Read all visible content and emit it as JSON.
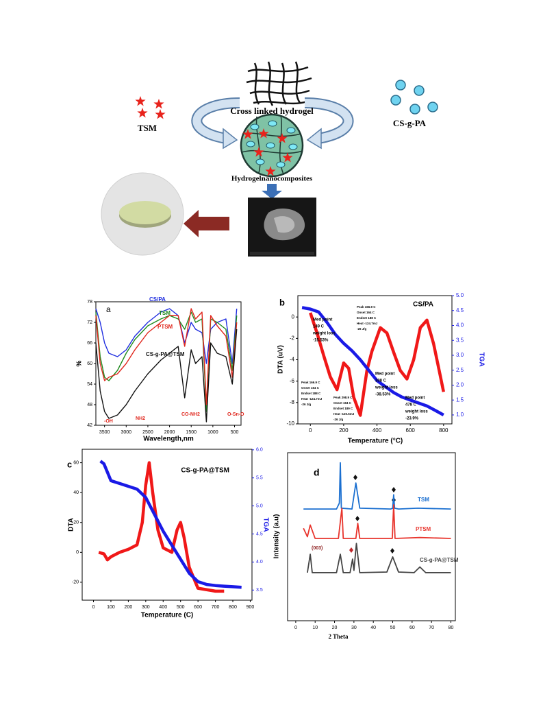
{
  "scheme": {
    "hydrogel_label": "Cross linked hydrogel",
    "drug_label": "TSM",
    "polymer_label": "CS-g-PA",
    "composite_label": "Hydrogelnanocomposites"
  },
  "chart_data": [
    {
      "type": "line",
      "panel": "a",
      "xlabel": "Wavelength,nm",
      "ylabel": "%",
      "xlim": [
        3700,
        350
      ],
      "xticks": [
        3500,
        3000,
        2500,
        2000,
        1500,
        1000,
        500
      ],
      "ylim": [
        42,
        78
      ],
      "yticks": [
        42,
        48,
        54,
        60,
        66,
        72,
        78
      ],
      "x": [
        3700,
        3600,
        3500,
        3400,
        3200,
        3000,
        2800,
        2500,
        2200,
        2000,
        1800,
        1650,
        1500,
        1400,
        1250,
        1150,
        1050,
        900,
        700,
        550,
        450
      ],
      "series": [
        {
          "name": "CS/PA",
          "color": "#1f2de0",
          "values": [
            76,
            72,
            66,
            63,
            62,
            64,
            68,
            72,
            75,
            76,
            74,
            66,
            72,
            70,
            69,
            60,
            70,
            72,
            73,
            60,
            76
          ]
        },
        {
          "name": "TSM",
          "color": "#1e8a1e",
          "values": [
            75,
            62,
            56,
            55,
            58,
            63,
            67,
            71,
            73,
            74,
            73,
            70,
            75,
            72,
            73,
            46,
            73,
            72,
            70,
            58,
            74
          ]
        },
        {
          "name": "PTSM",
          "color": "#e0261c",
          "values": [
            74,
            60,
            55,
            56,
            57,
            60,
            64,
            69,
            72,
            74,
            74,
            65,
            76,
            73,
            75,
            48,
            74,
            71,
            68,
            56,
            72
          ]
        },
        {
          "name": "CS-g-PA@TSM",
          "color": "#111111",
          "values": [
            66,
            52,
            46,
            44,
            45,
            48,
            52,
            57,
            61,
            63,
            65,
            50,
            64,
            60,
            62,
            43,
            66,
            63,
            62,
            54,
            70
          ]
        }
      ],
      "annotations": [
        "-OH",
        "NH2",
        "CO-NH2",
        "O-Sn-O"
      ]
    },
    {
      "type": "line",
      "panel": "b",
      "title": "CS/PA",
      "xlabel": "Temperature (°C)",
      "ylabel": "DTA (uV)",
      "y2label": "TGA",
      "xlim": [
        -75,
        850
      ],
      "xticks": [
        0,
        200,
        400,
        600,
        800
      ],
      "ylim": [
        -10,
        2
      ],
      "yticks": [
        -10,
        -8,
        -6,
        -4,
        -2,
        0
      ],
      "y2lim": [
        0.7,
        5
      ],
      "y2ticks": [
        {
          "value": 1,
          "label": "1.0"
        },
        1.5,
        {
          "value": 2,
          "label": "2.0"
        },
        2.5,
        {
          "value": 3,
          "label": "3.0"
        },
        3.5,
        {
          "value": 4,
          "label": "4.0"
        },
        4.5,
        {
          "value": 5,
          "label": "5.0"
        }
      ],
      "series": [
        {
          "name": "DTA",
          "color": "#f01818",
          "x": [
            0,
            40,
            80,
            120,
            160,
            200,
            230,
            260,
            300,
            340,
            370,
            420,
            460,
            500,
            540,
            580,
            620,
            660,
            700,
            740,
            780,
            800
          ],
          "values": [
            0.4,
            -1.5,
            -3.6,
            -5.6,
            -6.8,
            -4.3,
            -4.8,
            -7.5,
            -9.2,
            -5,
            -3.2,
            -1,
            -1.5,
            -3.3,
            -5,
            -5.8,
            -4,
            -1,
            -0.3,
            -2.5,
            -5.5,
            -7
          ]
        },
        {
          "name": "TGA",
          "color": "#1a1ae6",
          "axis": "y2",
          "x": [
            -50,
            0,
            50,
            100,
            150,
            200,
            250,
            300,
            350,
            400,
            450,
            500,
            550,
            600,
            650,
            700,
            750,
            800
          ],
          "values": [
            4.6,
            4.55,
            4.45,
            4.1,
            3.7,
            3.4,
            3.15,
            2.85,
            2.5,
            2.15,
            1.95,
            1.75,
            1.6,
            1.5,
            1.4,
            1.3,
            1.15,
            1.0
          ]
        }
      ],
      "annotations": [
        [
          "Med point",
          "149 C",
          "weight loss",
          "-15.53%"
        ],
        [
          "Peak 166.9 C",
          "Onset 164  C",
          "Endset 188 C",
          "Heat  -124.7mJ",
          "-26 J/g"
        ],
        [
          "Med point",
          "308 C",
          "weight loss",
          "-38.53%"
        ],
        [
          "Peak 166.9 C",
          "Onset 164  C",
          "Endset 188 C",
          "Heat  -124.7mJ",
          "-26 J/g"
        ],
        [
          "Peak 298.9 C",
          "Onset 194  C",
          "Endset 189 C",
          "Heat  -120.5mJ",
          "-26 J/g"
        ],
        [
          "Med point",
          "478 C",
          "weight loss",
          "-23.9%"
        ]
      ]
    },
    {
      "type": "line",
      "panel": "c",
      "title": "CS-g-PA@TSM",
      "xlabel": "Temperature (C)",
      "ylabel": "DTA",
      "y2label": "TGA",
      "xlim": [
        -65,
        910
      ],
      "xticks": [
        0,
        100,
        200,
        300,
        400,
        500,
        600,
        700,
        800,
        900
      ],
      "ylim": [
        -32,
        69
      ],
      "yticks": [
        -20,
        0,
        20,
        40,
        60
      ],
      "y2lim": [
        3.32,
        6.01
      ],
      "y2ticks": [
        3.5,
        {
          "value": 4,
          "label": "4.0"
        },
        4.5,
        {
          "value": 5,
          "label": "5.0"
        },
        5.5,
        {
          "value": 6,
          "label": "6.0"
        }
      ],
      "series": [
        {
          "name": "DTA",
          "color": "#f01818",
          "x": [
            30,
            60,
            80,
            100,
            150,
            200,
            250,
            280,
            300,
            320,
            340,
            370,
            400,
            450,
            480,
            500,
            520,
            550,
            600,
            700,
            750
          ],
          "values": [
            0,
            -1,
            -5,
            -3,
            0,
            2,
            5,
            20,
            45,
            60,
            40,
            15,
            3,
            0,
            15,
            20,
            10,
            -10,
            -24,
            -26,
            -26
          ]
        },
        {
          "name": "TGA",
          "color": "#1a1ae6",
          "axis": "y2",
          "x": [
            40,
            60,
            80,
            100,
            150,
            200,
            250,
            300,
            350,
            400,
            450,
            500,
            550,
            600,
            650,
            700,
            750,
            800,
            850
          ],
          "values": [
            5.8,
            5.75,
            5.6,
            5.45,
            5.4,
            5.35,
            5.3,
            5.15,
            4.85,
            4.55,
            4.3,
            4.05,
            3.8,
            3.65,
            3.6,
            3.58,
            3.57,
            3.56,
            3.55
          ]
        }
      ]
    },
    {
      "type": "line",
      "panel": "d",
      "xlabel": "2 Theta",
      "ylabel": "Intensity (a.u)",
      "xlim": [
        -4.2,
        82.3
      ],
      "xticks": [
        0,
        10,
        20,
        30,
        40,
        50,
        60,
        70,
        80
      ],
      "ylim": [
        0,
        100
      ],
      "series": [
        {
          "name": "TSM",
          "color": "#1a6fd0",
          "x": [
            4,
            21,
            22.5,
            23,
            23.5,
            29,
            31,
            33,
            49,
            50,
            50.5,
            51,
            53,
            63,
            80
          ],
          "values": [
            66.5,
            66.5,
            70,
            94,
            67,
            66.5,
            82,
            67,
            66.5,
            67,
            75,
            67,
            66.5,
            67,
            66.5
          ]
        },
        {
          "name": "PTSM",
          "color": "#e8342c",
          "x": [
            4,
            6,
            7.5,
            10,
            22,
            23.8,
            24.5,
            31,
            32,
            33,
            49.8,
            50.5,
            51.2,
            64,
            80
          ],
          "values": [
            55,
            50,
            57,
            49,
            49,
            67,
            49,
            49,
            58,
            49,
            49,
            69,
            49,
            49.5,
            49
          ]
        },
        {
          "name": "CS-g-PA@TSM",
          "color": "#444444",
          "x": [
            6,
            7.5,
            8.5,
            21,
            23,
            24.5,
            28,
            29.3,
            30,
            31.3,
            33,
            47,
            50,
            53,
            61,
            64,
            67,
            80
          ],
          "values": [
            28.6,
            39.6,
            28.6,
            28.6,
            39.6,
            28.6,
            28.6,
            36.7,
            30,
            46,
            28.6,
            29,
            38,
            29,
            28.6,
            32,
            28.6,
            28.6
          ]
        }
      ],
      "annotations": [
        "(003)"
      ]
    }
  ]
}
